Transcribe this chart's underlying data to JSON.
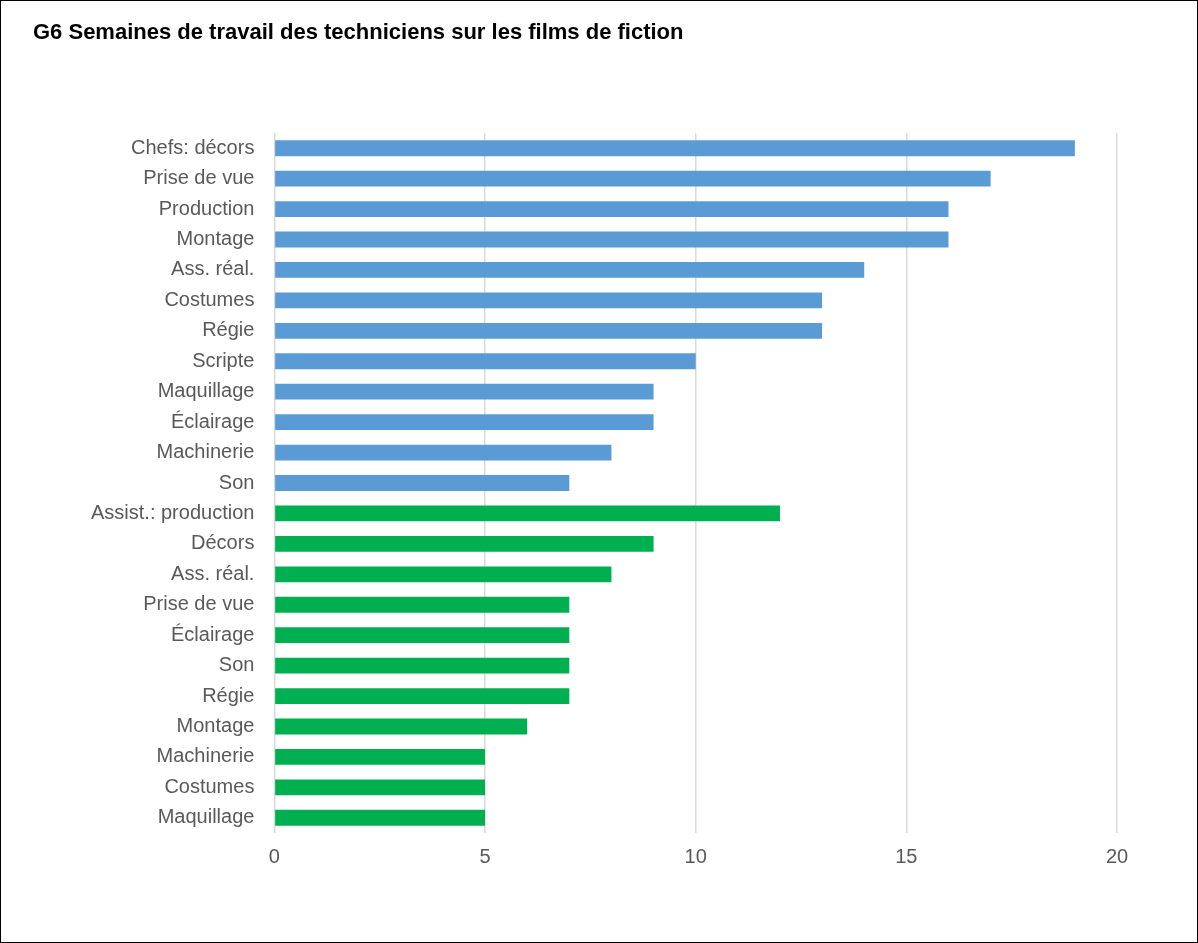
{
  "chart_data": {
    "type": "bar",
    "orientation": "horizontal",
    "title": "G6 Semaines de travail des techniciens sur les films de fiction",
    "categories": [
      "Chefs: décors",
      "Prise de vue",
      "Production",
      "Montage",
      "Ass. réal.",
      "Costumes",
      "Régie",
      "Scripte",
      "Maquillage",
      "Éclairage",
      "Machinerie",
      "Son",
      "Assist.: production",
      "Décors",
      "Ass. réal.",
      "Prise de vue",
      "Éclairage",
      "Son",
      "Régie",
      "Montage",
      "Machinerie",
      "Costumes",
      "Maquillage"
    ],
    "values": [
      19,
      17,
      16,
      16,
      14,
      13,
      13,
      10,
      9,
      9,
      8,
      7,
      12,
      9,
      8,
      7,
      7,
      7,
      7,
      6,
      5,
      5,
      5
    ],
    "colors": [
      "#5b9bd5",
      "#5b9bd5",
      "#5b9bd5",
      "#5b9bd5",
      "#5b9bd5",
      "#5b9bd5",
      "#5b9bd5",
      "#5b9bd5",
      "#5b9bd5",
      "#5b9bd5",
      "#5b9bd5",
      "#5b9bd5",
      "#00b050",
      "#00b050",
      "#00b050",
      "#00b050",
      "#00b050",
      "#00b050",
      "#00b050",
      "#00b050",
      "#00b050",
      "#00b050",
      "#00b050"
    ],
    "xlim": [
      0,
      20
    ],
    "xticks": [
      0,
      5,
      10,
      15,
      20
    ],
    "grid": "x",
    "legend": false
  }
}
